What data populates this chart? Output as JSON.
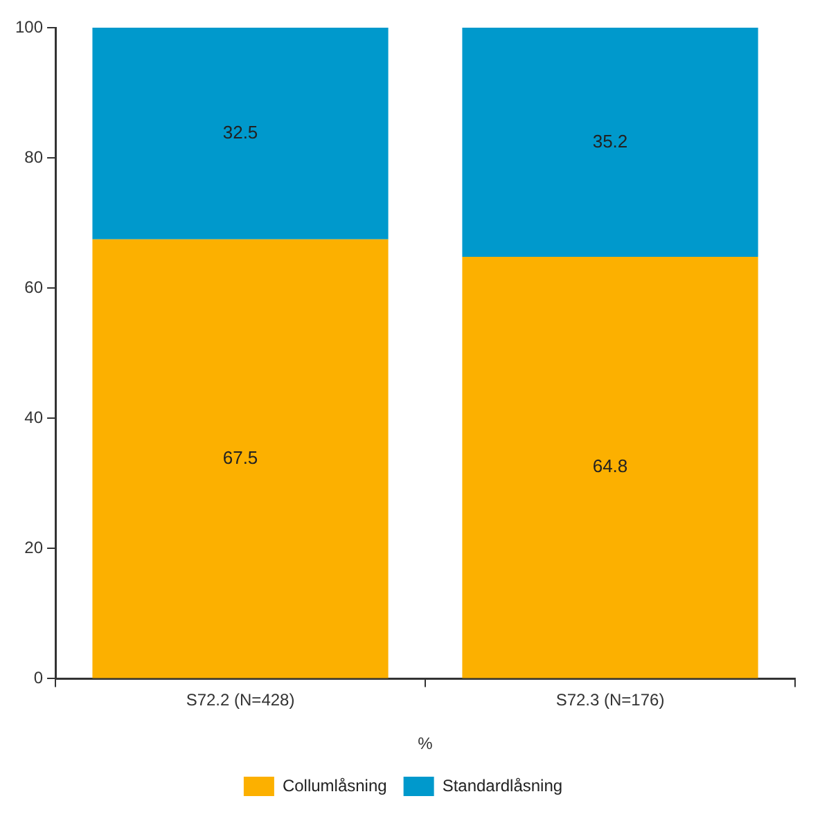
{
  "chart_data": {
    "type": "bar",
    "stacked": true,
    "categories": [
      "S72.2 (N=428)",
      "S72.3 (N=176)"
    ],
    "xlabel": "%",
    "ylim": [
      0,
      100
    ],
    "yticks": [
      0,
      20,
      40,
      60,
      80,
      100
    ],
    "grid": false,
    "legend": "bottom",
    "data_labels": true,
    "series": [
      {
        "name": "Collumlåsning",
        "color": "#fcb000",
        "values": [
          67.5,
          64.8
        ]
      },
      {
        "name": "Standardlåsning",
        "color": "#0099cc",
        "values": [
          32.5,
          35.2
        ]
      }
    ]
  }
}
